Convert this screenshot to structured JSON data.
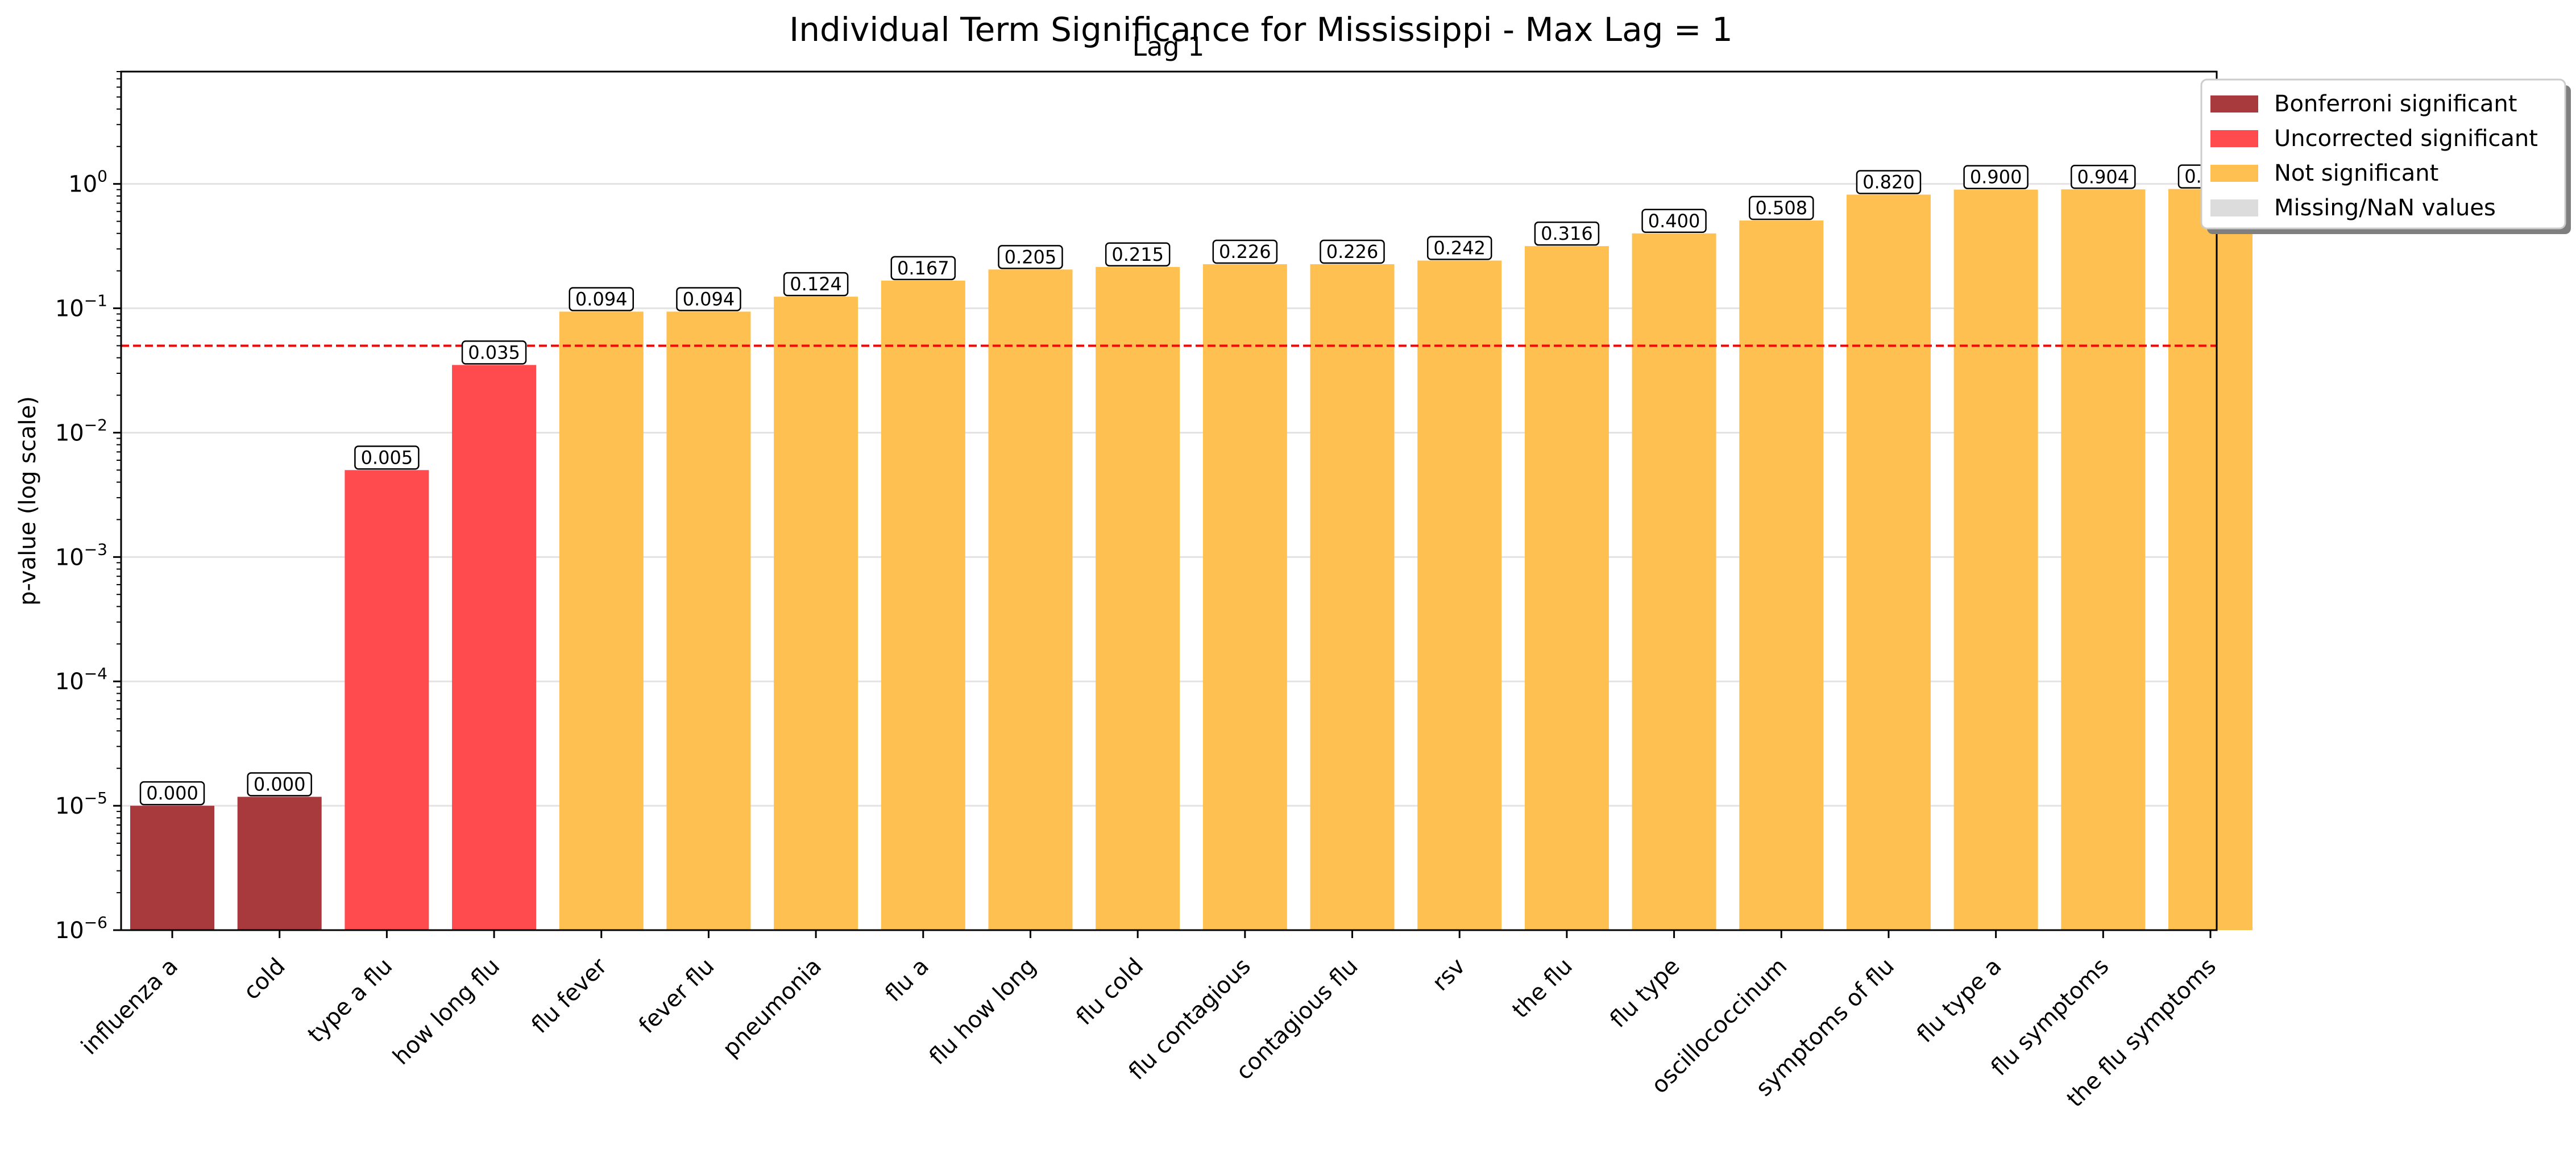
{
  "chart_data": {
    "type": "bar",
    "title": "Individual Term Significance for Mississippi - Max Lag = 1",
    "subtitle": "Lag 1",
    "ylabel": "p-value (log scale)",
    "xlabel": "",
    "y_scale": "log",
    "ylim": [
      1e-06,
      8
    ],
    "y_ticks": [
      {
        "value": 1e-06,
        "mantissa": "10",
        "exp": "−6"
      },
      {
        "value": 1e-05,
        "mantissa": "10",
        "exp": "−5"
      },
      {
        "value": 0.0001,
        "mantissa": "10",
        "exp": "−4"
      },
      {
        "value": 0.001,
        "mantissa": "10",
        "exp": "−3"
      },
      {
        "value": 0.01,
        "mantissa": "10",
        "exp": "−2"
      },
      {
        "value": 0.1,
        "mantissa": "10",
        "exp": "−1"
      },
      {
        "value": 1,
        "mantissa": "10",
        "exp": "0"
      }
    ],
    "grid": "y",
    "threshold": 0.05,
    "threshold_color": "#ff0000",
    "legend_position": "top-right",
    "categories": [
      "influenza a",
      "cold",
      "type a flu",
      "how long flu",
      "flu fever",
      "fever flu",
      "pneumonia",
      "flu a",
      "flu how long",
      "flu cold",
      "flu contagious",
      "contagious flu",
      "rsv",
      "the flu",
      "flu type",
      "oscillococcinum",
      "symptoms of flu",
      "flu type a",
      "flu symptoms",
      "the flu symptoms"
    ],
    "values": [
      1e-05,
      1.18e-05,
      0.005,
      0.035,
      0.094,
      0.094,
      0.124,
      0.167,
      0.205,
      0.215,
      0.226,
      0.226,
      0.242,
      0.316,
      0.4,
      0.508,
      0.82,
      0.9,
      0.904,
      0.91
    ],
    "value_labels": [
      "0.000",
      "0.000",
      "0.005",
      "0.035",
      "0.094",
      "0.094",
      "0.124",
      "0.167",
      "0.205",
      "0.215",
      "0.226",
      "0.226",
      "0.242",
      "0.316",
      "0.400",
      "0.508",
      "0.820",
      "0.900",
      "0.904",
      "0.910"
    ],
    "groups": [
      "bonferroni",
      "bonferroni",
      "uncorrected",
      "uncorrected",
      "not",
      "not",
      "not",
      "not",
      "not",
      "not",
      "not",
      "not",
      "not",
      "not",
      "not",
      "not",
      "not",
      "not",
      "not",
      "not"
    ],
    "legend": [
      {
        "key": "bonferroni",
        "label": "Bonferroni significant",
        "color": "#a83a3d"
      },
      {
        "key": "uncorrected",
        "label": "Uncorrected significant",
        "color": "#ff4a4e"
      },
      {
        "key": "not",
        "label": "Not significant",
        "color": "#fec050"
      },
      {
        "key": "missing",
        "label": "Missing/NaN values",
        "color": "#dcdcdc"
      }
    ]
  }
}
